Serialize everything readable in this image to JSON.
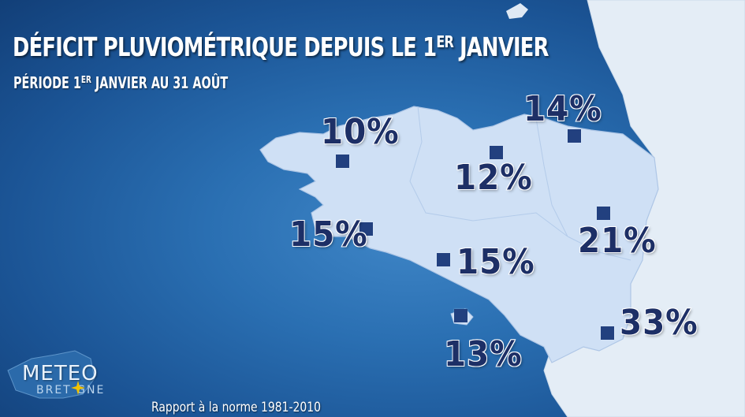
{
  "title": {
    "main": "DÉFICIT PLUVIOMÉTRIQUE DEPUIS LE 1",
    "sup": "ER",
    "rest": " JANVIER"
  },
  "subtitle": {
    "main": "PÉRIODE 1",
    "sup": "ER",
    "rest": " JANVIER AU 31 AOÛT"
  },
  "footer": "Rapport à la norme 1981-2010",
  "logo": {
    "line1": "METEO",
    "line2": "BRET GNE"
  },
  "colors": {
    "sea": "#2a6fb2",
    "region": "#cfe0f5",
    "land": "#e6eef7",
    "marker": "#22407f",
    "value_text": "#1d2f66"
  },
  "stations": [
    {
      "id": "brest-north",
      "value": "10%"
    },
    {
      "id": "morlaix",
      "value": "12%"
    },
    {
      "id": "st-brieuc",
      "value": "14%"
    },
    {
      "id": "quimper",
      "value": "15%"
    },
    {
      "id": "lorient",
      "value": "15%"
    },
    {
      "id": "rennes",
      "value": "21%"
    },
    {
      "id": "belle-ile",
      "value": "13%"
    },
    {
      "id": "nantes",
      "value": "33%"
    }
  ]
}
